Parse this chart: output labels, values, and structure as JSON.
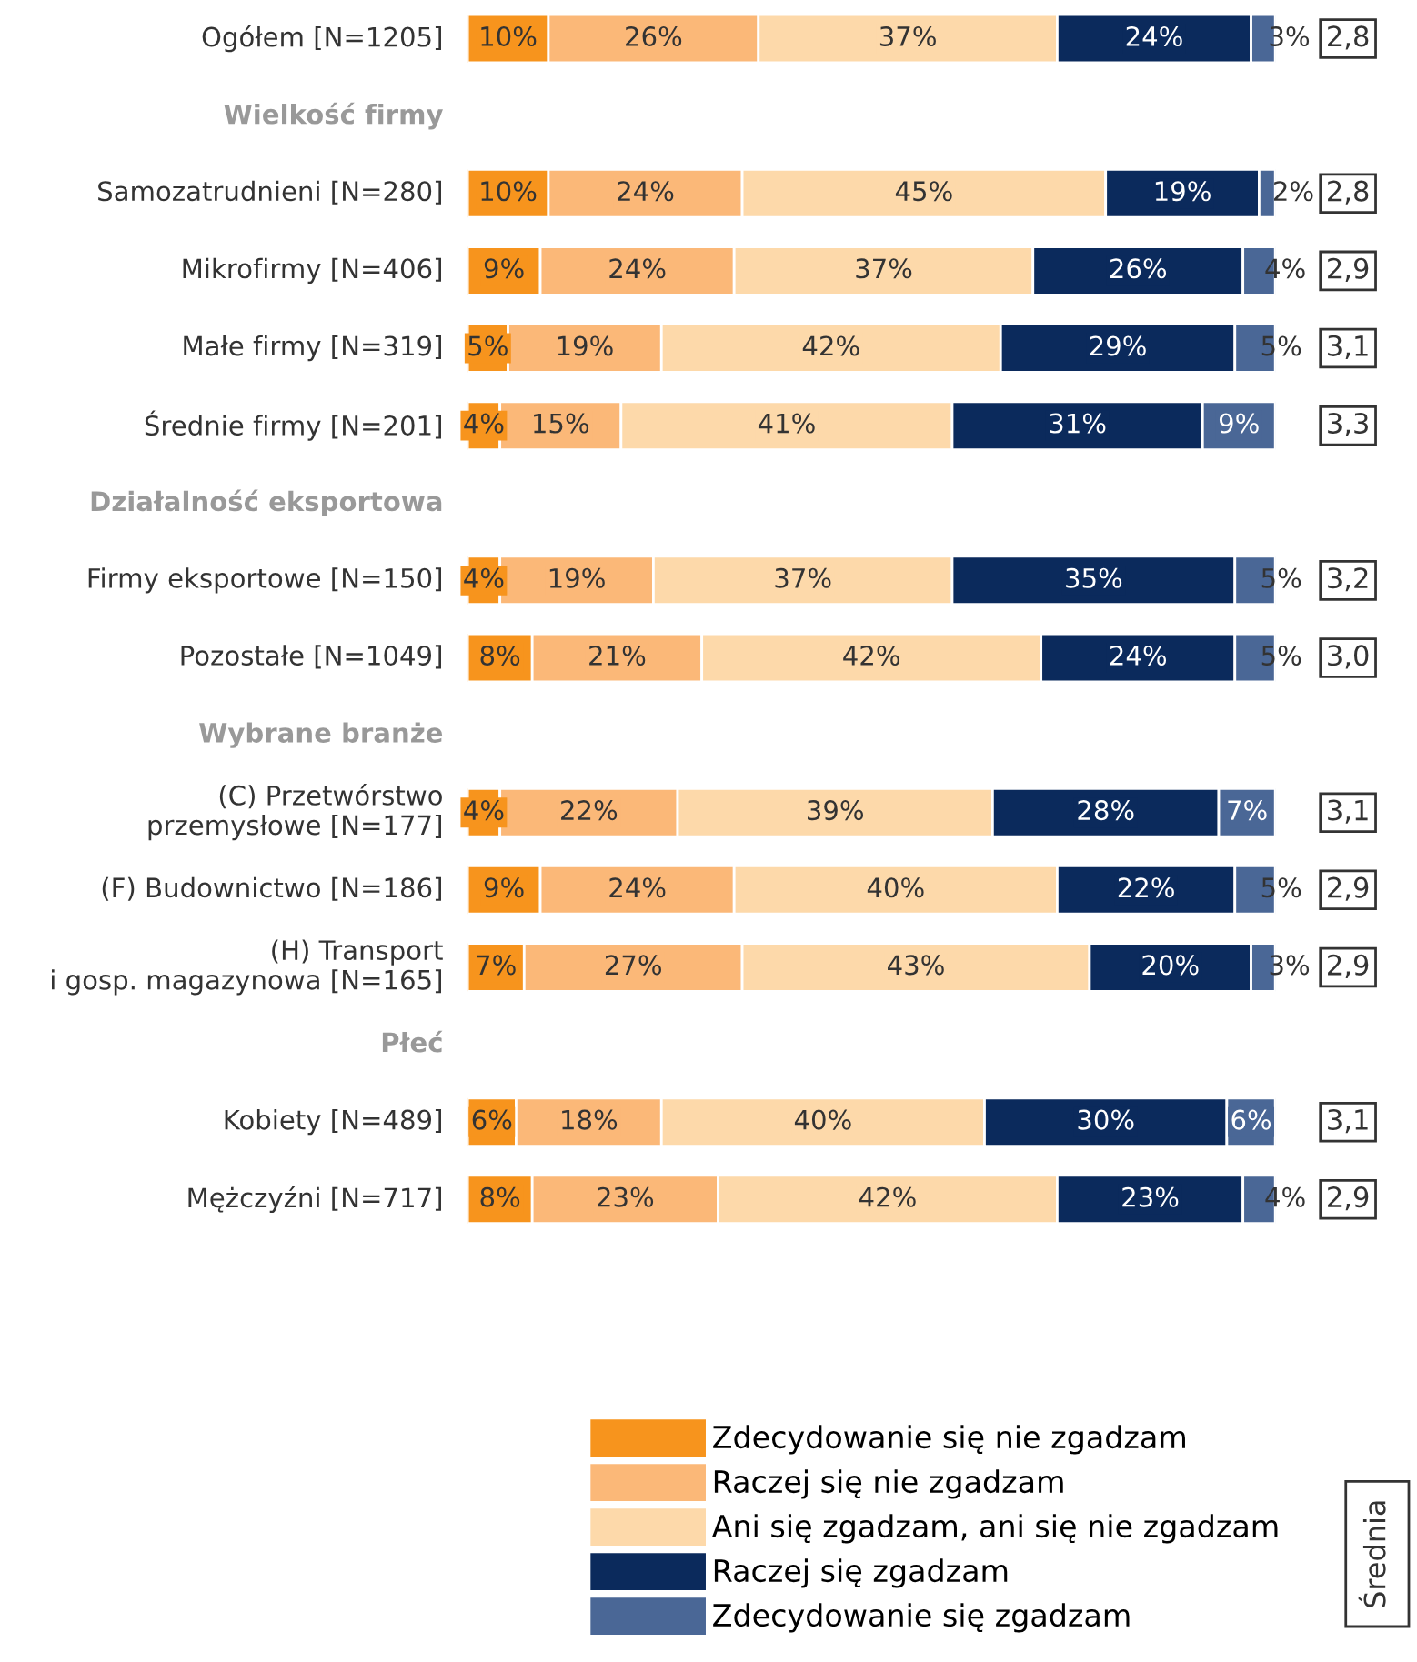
{
  "chart_data": {
    "type": "bar",
    "orientation": "horizontal",
    "stacked": true,
    "categories": [
      "Ogółem [N=1205]",
      "Wielkość firmy",
      "Samozatrudnieni [N=280]",
      "Mikrofirmy [N=406]",
      "Małe firmy [N=319]",
      "Średnie firmy [N=201]",
      "Działalność eksportowa",
      "Firmy eksportowe [N=150]",
      "Pozostałe [N=1049]",
      "Wybrane branże",
      "(C) Przetwórstwo\nprzemysłowe [N=177]",
      "(F) Budownictwo [N=186]",
      "(H) Transport\ni gosp. magazynowa [N=165]",
      "Płeć",
      "Kobiety [N=489]",
      "Mężczyźni [N=717]"
    ],
    "series": [
      {
        "name": "Zdecydowanie się nie zgadzam",
        "color": "#f7941d",
        "values": [
          10,
          null,
          10,
          9,
          5,
          4,
          null,
          4,
          8,
          null,
          4,
          9,
          7,
          null,
          6,
          8
        ],
        "value_labels": [
          "10%",
          null,
          "10%",
          "9%",
          "5%",
          "4%",
          null,
          "4%",
          "8%",
          null,
          "4%",
          "9%",
          "7%",
          null,
          "6%",
          "8%"
        ]
      },
      {
        "name": "Raczej się nie zgadzam",
        "color": "#fbb878",
        "values": [
          26,
          null,
          24,
          24,
          19,
          15,
          null,
          19,
          21,
          null,
          22,
          24,
          27,
          null,
          18,
          23
        ],
        "value_labels": [
          "26%",
          null,
          "24%",
          "24%",
          "19%",
          "15%",
          null,
          "19%",
          "21%",
          null,
          "22%",
          "24%",
          "27%",
          null,
          "18%",
          "23%"
        ]
      },
      {
        "name": "Ani się zgadzam, ani się nie zgadzam",
        "color": "#fdd9aa",
        "values": [
          37,
          null,
          45,
          37,
          42,
          41,
          null,
          37,
          42,
          null,
          39,
          40,
          43,
          null,
          40,
          42
        ],
        "value_labels": [
          "37%",
          null,
          "45%",
          "37%",
          "42%",
          "41%",
          null,
          "37%",
          "42%",
          null,
          "39%",
          "40%",
          "43%",
          null,
          "40%",
          "42%"
        ]
      },
      {
        "name": "Raczej się zgadzam",
        "color": "#0b2a5c",
        "values": [
          24,
          null,
          19,
          26,
          29,
          31,
          null,
          35,
          24,
          null,
          28,
          22,
          20,
          null,
          30,
          23
        ],
        "value_labels": [
          "24%",
          null,
          "19%",
          "26%",
          "29%",
          "31%",
          null,
          "35%",
          "24%",
          null,
          "28%",
          "22%",
          "20%",
          null,
          "30%",
          "23%"
        ]
      },
      {
        "name": "Zdecydowanie się zgadzam",
        "color": "#4a6796",
        "values": [
          3,
          null,
          2,
          4,
          5,
          9,
          null,
          5,
          5,
          null,
          7,
          5,
          3,
          null,
          6,
          4
        ],
        "value_labels": [
          "3%",
          null,
          "2%",
          "4%",
          "5%",
          "9%",
          null,
          "5%",
          "5%",
          null,
          "7%",
          "5%",
          "3%",
          null,
          "6%",
          "4%"
        ]
      }
    ],
    "xlim": [
      0,
      100
    ],
    "tick_labels": "y",
    "legend": "bottom",
    "annotations": [
      "2,8",
      "2,8",
      "2,9",
      "3,1",
      "3,3",
      "3,2",
      "3,0",
      "3,1",
      "2,9",
      "2,9",
      "3,1",
      "2,9",
      "Średnia"
    ]
  }
}
